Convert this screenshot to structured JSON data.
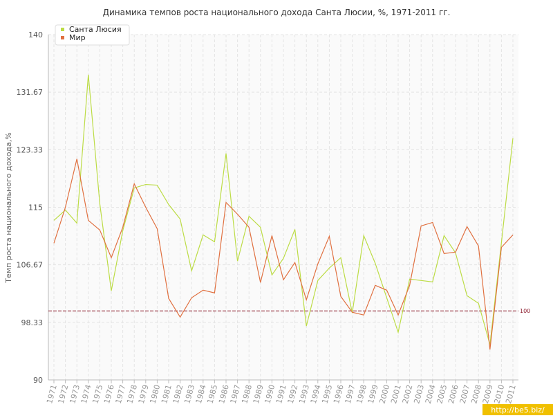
{
  "chart_data": {
    "type": "line",
    "title": "Динамика темпов роста национального дохода Санта Люсии, %, 1971-2011 гг.",
    "y_label": "Темп роста национального дохода,%",
    "categories": [
      "1971",
      "1972",
      "1973",
      "1974",
      "1975",
      "1976",
      "1977",
      "1978",
      "1979",
      "1980",
      "1981",
      "1982",
      "1983",
      "1984",
      "1985",
      "1986",
      "1987",
      "1988",
      "1989",
      "1990",
      "1991",
      "1992",
      "1993",
      "1994",
      "1995",
      "1996",
      "1997",
      "1998",
      "1999",
      "2000",
      "2001",
      "2002",
      "2003",
      "2004",
      "2005",
      "2006",
      "2007",
      "2008",
      "2009",
      "2010",
      "2011"
    ],
    "series": [
      {
        "name": "Санта Люсия",
        "color": "#bcdc45",
        "values": [
          113.1,
          114.6,
          112.7,
          134.2,
          115.5,
          102.9,
          111.6,
          117.8,
          118.3,
          118.2,
          115.4,
          113.3,
          105.8,
          111.0,
          110.0,
          122.8,
          107.2,
          113.7,
          112.1,
          105.2,
          107.6,
          111.8,
          97.8,
          104.4,
          106.2,
          107.7,
          99.7,
          110.9,
          106.9,
          101.9,
          96.9,
          104.6,
          104.4,
          104.2,
          110.9,
          108.4,
          102.2,
          101.1,
          95.1,
          109.9,
          125.0
        ]
      },
      {
        "name": "Мир",
        "color": "#e07040",
        "values": [
          109.8,
          115.0,
          122.0,
          113.1,
          111.7,
          107.7,
          112.1,
          118.4,
          115.0,
          111.9,
          101.8,
          99.1,
          101.9,
          103.0,
          102.6,
          115.7,
          114.0,
          112.1,
          104.1,
          110.9,
          104.5,
          107.0,
          101.6,
          106.8,
          110.8,
          102.1,
          99.8,
          99.4,
          103.7,
          103.0,
          99.4,
          103.7,
          112.3,
          112.8,
          108.3,
          108.5,
          112.2,
          109.4,
          94.4,
          109.2,
          111.0
        ]
      }
    ],
    "ylim": [
      90,
      140
    ],
    "yticks": [
      90,
      98.33,
      106.67,
      115,
      123.33,
      131.67,
      140
    ],
    "grid": true,
    "reference_line": {
      "value": 100,
      "color": "#8b1a2b"
    },
    "legend": "top-left",
    "watermark": "http://be5.biz/"
  }
}
